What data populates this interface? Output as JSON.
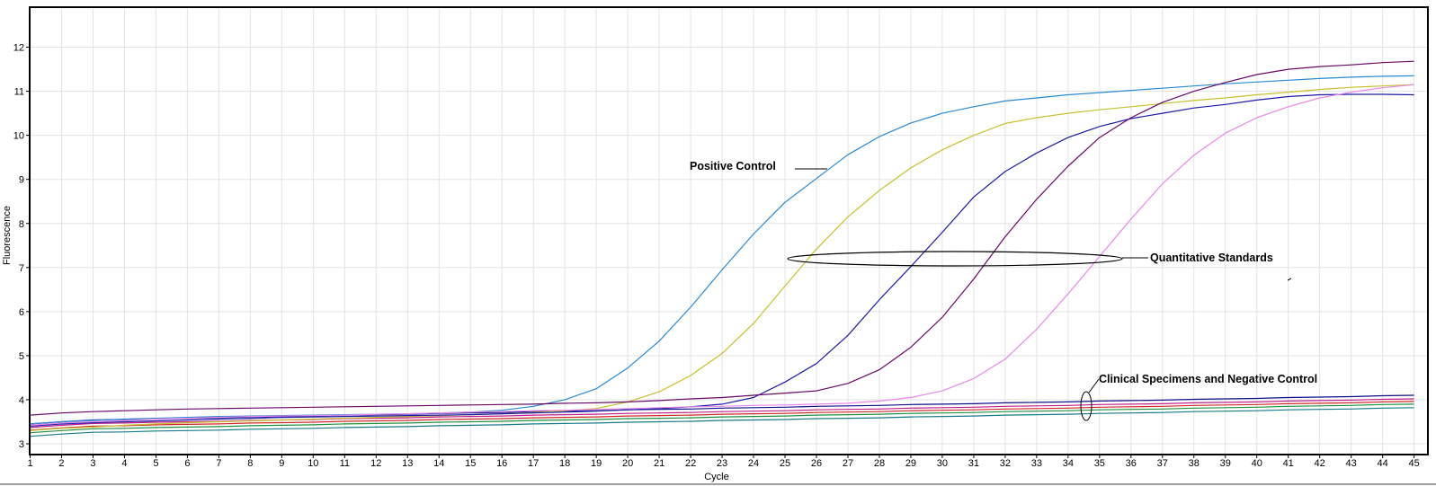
{
  "chart_data": {
    "type": "line",
    "xlabel": "Cycle",
    "ylabel": "Fluorescence",
    "xlim": [
      1,
      45
    ],
    "ylim": [
      2.75,
      12.9
    ],
    "grid": true,
    "xticks": [
      1,
      2,
      3,
      4,
      5,
      6,
      7,
      8,
      9,
      10,
      11,
      12,
      13,
      14,
      15,
      16,
      17,
      18,
      19,
      20,
      21,
      22,
      23,
      24,
      25,
      26,
      27,
      28,
      29,
      30,
      31,
      32,
      33,
      34,
      35,
      36,
      37,
      38,
      39,
      40,
      41,
      42,
      43,
      44,
      45
    ],
    "yticks": [
      3,
      4,
      5,
      6,
      7,
      8,
      9,
      10,
      11,
      12
    ],
    "x": [
      1,
      2,
      3,
      4,
      5,
      6,
      7,
      8,
      9,
      10,
      11,
      12,
      13,
      14,
      15,
      16,
      17,
      18,
      19,
      20,
      21,
      22,
      23,
      24,
      25,
      26,
      27,
      28,
      29,
      30,
      31,
      32,
      33,
      34,
      35,
      36,
      37,
      38,
      39,
      40,
      41,
      42,
      43,
      44,
      45
    ],
    "series": [
      {
        "color": "#2a8ad4",
        "values": [
          3.45,
          3.5,
          3.53,
          3.56,
          3.58,
          3.6,
          3.62,
          3.63,
          3.64,
          3.65,
          3.66,
          3.67,
          3.68,
          3.7,
          3.72,
          3.76,
          3.85,
          4.0,
          4.25,
          4.72,
          5.33,
          6.1,
          6.95,
          7.76,
          8.48,
          9.02,
          9.56,
          9.97,
          10.28,
          10.5,
          10.65,
          10.78,
          10.85,
          10.92,
          10.97,
          11.02,
          11.07,
          11.12,
          11.17,
          11.21,
          11.25,
          11.29,
          11.32,
          11.34,
          11.35
        ]
      },
      {
        "color": "#c8c030",
        "values": [
          3.3,
          3.35,
          3.38,
          3.42,
          3.45,
          3.48,
          3.5,
          3.52,
          3.54,
          3.56,
          3.58,
          3.6,
          3.62,
          3.64,
          3.66,
          3.68,
          3.71,
          3.75,
          3.8,
          3.95,
          4.18,
          4.55,
          5.05,
          5.73,
          6.58,
          7.42,
          8.15,
          8.75,
          9.26,
          9.67,
          10.0,
          10.27,
          10.4,
          10.5,
          10.58,
          10.65,
          10.72,
          10.79,
          10.85,
          10.92,
          10.98,
          11.04,
          11.09,
          11.12,
          11.15
        ]
      },
      {
        "color": "#1c1ca8",
        "values": [
          3.4,
          3.45,
          3.48,
          3.5,
          3.52,
          3.54,
          3.56,
          3.58,
          3.6,
          3.61,
          3.62,
          3.63,
          3.64,
          3.65,
          3.66,
          3.68,
          3.7,
          3.72,
          3.74,
          3.77,
          3.8,
          3.84,
          3.9,
          4.05,
          4.4,
          4.82,
          5.46,
          6.27,
          7.02,
          7.8,
          8.6,
          9.18,
          9.6,
          9.95,
          10.2,
          10.38,
          10.5,
          10.62,
          10.7,
          10.8,
          10.88,
          10.92,
          10.93,
          10.93,
          10.92
        ]
      },
      {
        "color": "#6a0a6a",
        "values": [
          3.65,
          3.7,
          3.73,
          3.75,
          3.77,
          3.79,
          3.8,
          3.81,
          3.82,
          3.83,
          3.84,
          3.85,
          3.86,
          3.87,
          3.88,
          3.89,
          3.9,
          3.92,
          3.93,
          3.95,
          3.98,
          4.02,
          4.05,
          4.1,
          4.15,
          4.2,
          4.37,
          4.68,
          5.19,
          5.87,
          6.74,
          7.7,
          8.55,
          9.3,
          9.95,
          10.4,
          10.75,
          11.0,
          11.2,
          11.38,
          11.5,
          11.56,
          11.6,
          11.65,
          11.68
        ]
      },
      {
        "color": "#e888e8",
        "values": [
          3.42,
          3.47,
          3.5,
          3.53,
          3.56,
          3.58,
          3.6,
          3.62,
          3.63,
          3.64,
          3.65,
          3.67,
          3.68,
          3.7,
          3.72,
          3.73,
          3.75,
          3.76,
          3.78,
          3.8,
          3.82,
          3.84,
          3.85,
          3.87,
          3.88,
          3.9,
          3.92,
          3.97,
          4.05,
          4.2,
          4.48,
          4.92,
          5.6,
          6.4,
          7.25,
          8.1,
          8.9,
          9.55,
          10.05,
          10.4,
          10.65,
          10.85,
          10.98,
          11.08,
          11.15
        ]
      },
      {
        "color": "#10108a",
        "values": [
          3.45,
          3.5,
          3.54,
          3.55,
          3.57,
          3.58,
          3.59,
          3.61,
          3.62,
          3.63,
          3.65,
          3.66,
          3.67,
          3.69,
          3.7,
          3.71,
          3.73,
          3.74,
          3.75,
          3.77,
          3.78,
          3.79,
          3.81,
          3.82,
          3.83,
          3.85,
          3.86,
          3.87,
          3.89,
          3.9,
          3.91,
          3.93,
          3.94,
          3.95,
          3.97,
          3.98,
          3.99,
          4.01,
          4.02,
          4.03,
          4.05,
          4.06,
          4.07,
          4.09,
          4.1
        ]
      },
      {
        "color": "#c0208a",
        "values": [
          3.37,
          3.42,
          3.46,
          3.47,
          3.49,
          3.5,
          3.51,
          3.53,
          3.54,
          3.55,
          3.57,
          3.58,
          3.59,
          3.61,
          3.62,
          3.63,
          3.65,
          3.66,
          3.67,
          3.69,
          3.7,
          3.71,
          3.73,
          3.74,
          3.75,
          3.77,
          3.78,
          3.79,
          3.81,
          3.82,
          3.83,
          3.85,
          3.86,
          3.87,
          3.89,
          3.9,
          3.91,
          3.93,
          3.94,
          3.95,
          3.97,
          3.98,
          3.99,
          4.01,
          4.02
        ]
      },
      {
        "color": "#d02828",
        "values": [
          3.31,
          3.36,
          3.4,
          3.41,
          3.43,
          3.44,
          3.45,
          3.47,
          3.48,
          3.49,
          3.51,
          3.52,
          3.53,
          3.55,
          3.56,
          3.57,
          3.59,
          3.6,
          3.61,
          3.63,
          3.64,
          3.65,
          3.67,
          3.68,
          3.69,
          3.71,
          3.72,
          3.73,
          3.75,
          3.76,
          3.77,
          3.79,
          3.8,
          3.81,
          3.83,
          3.84,
          3.85,
          3.87,
          3.88,
          3.89,
          3.91,
          3.92,
          3.93,
          3.95,
          3.96
        ]
      },
      {
        "color": "#209040",
        "values": [
          3.25,
          3.3,
          3.34,
          3.35,
          3.37,
          3.38,
          3.39,
          3.41,
          3.42,
          3.43,
          3.45,
          3.46,
          3.47,
          3.49,
          3.5,
          3.51,
          3.53,
          3.54,
          3.55,
          3.57,
          3.58,
          3.59,
          3.61,
          3.62,
          3.63,
          3.65,
          3.66,
          3.67,
          3.69,
          3.7,
          3.71,
          3.73,
          3.74,
          3.75,
          3.77,
          3.78,
          3.79,
          3.81,
          3.82,
          3.83,
          3.85,
          3.86,
          3.87,
          3.89,
          3.9
        ]
      },
      {
        "color": "#1a7a8a",
        "values": [
          3.17,
          3.22,
          3.26,
          3.27,
          3.29,
          3.3,
          3.31,
          3.33,
          3.34,
          3.35,
          3.37,
          3.38,
          3.39,
          3.41,
          3.42,
          3.43,
          3.45,
          3.46,
          3.47,
          3.49,
          3.5,
          3.51,
          3.53,
          3.54,
          3.55,
          3.57,
          3.58,
          3.59,
          3.61,
          3.62,
          3.63,
          3.65,
          3.66,
          3.67,
          3.69,
          3.7,
          3.71,
          3.73,
          3.74,
          3.75,
          3.77,
          3.78,
          3.79,
          3.81,
          3.82
        ]
      }
    ],
    "annotations": {
      "positive_control": "Positive Control",
      "quantitative_standards": "Quantitative Standards",
      "clinical_specimens": "Clinical Specimens and Negative Control"
    }
  }
}
